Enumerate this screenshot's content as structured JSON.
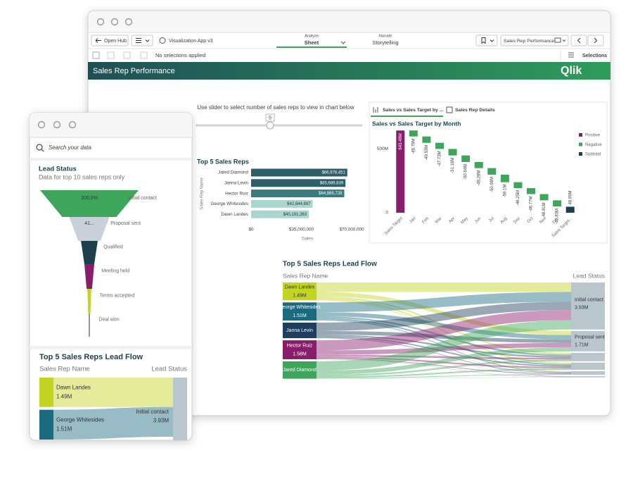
{
  "toolbar": {
    "open_hub": "Open Hub",
    "app_name": "Visualization App v3",
    "tabs": [
      {
        "caption": "Analyze",
        "label": "Sheet"
      },
      {
        "caption": "Narrate",
        "label": "Storytelling"
      }
    ],
    "sheet_selector": "Sales Rep Performance",
    "selections_status": "No selections applied",
    "selections_button": "Selections"
  },
  "sheet": {
    "title": "Sales Rep Performance",
    "logo": "Qlik",
    "slider": {
      "caption": "Use slider to select number of sales reps to view in chart below",
      "value": 5
    },
    "tabs": [
      "Sales vs Sales Target by ...",
      "Sales Rep Details"
    ]
  },
  "mobile": {
    "search_placeholder": "Search your data"
  },
  "chart_data": [
    {
      "type": "bar",
      "orientation": "horizontal",
      "title": "Top 5 Sales Reps",
      "y_label": "Sales Rep Name",
      "x_label": "Sales",
      "categories": [
        "Jared Diamond",
        "Janna Levin",
        "Hector Ruiz",
        "George Whitesides",
        "Dawn Landes"
      ],
      "values": [
        66978451,
        65689839,
        64865728,
        42844887,
        40191263
      ],
      "value_labels": [
        "$66,978,451",
        "$65,689,839",
        "$64,865,728",
        "$42,844,887",
        "$40,191,263"
      ],
      "colors": [
        "#2d5f6b",
        "#2d5f6b",
        "#3b7b80",
        "#a9d6ce",
        "#a9d6ce"
      ],
      "xlim": [
        0,
        70000000
      ],
      "xticks": [
        {
          "value": 0,
          "label": "$0"
        },
        {
          "value": 35000000,
          "label": "$35,000,000"
        },
        {
          "value": 70000000,
          "label": "$70,000,000"
        }
      ]
    },
    {
      "type": "waterfall",
      "title": "Sales vs Sales Target by Month",
      "categories": [
        "Sales Target",
        "Jan",
        "Feb",
        "Mar",
        "Apr",
        "May",
        "Jun",
        "Jul",
        "Aug",
        "Sep",
        "Oct",
        "Nov",
        "Dec",
        "Sales Target..."
      ],
      "values": [
        643.48,
        -46.79,
        -49.53,
        -47.73,
        -51.16,
        -50.94,
        -48.28,
        -50.98,
        -59.1,
        -46.25,
        -46.77,
        -48.81,
        -47.83,
        46.99
      ],
      "value_labels": [
        "643.48M",
        "-46.79M",
        "-49.53M",
        "-47.73M",
        "-51.16M",
        "-50.94M",
        "-48.28M",
        "-50.98M",
        "-59.1M",
        "-46.25M",
        "-46.77M",
        "-48.81M",
        "-47.83M",
        "46.99M"
      ],
      "legend": [
        {
          "name": "Positive",
          "color": "#8a1c6c"
        },
        {
          "name": "Negative",
          "color": "#3da65a"
        },
        {
          "name": "Subtotal",
          "color": "#1d3f4b"
        }
      ],
      "ylim": [
        0,
        700
      ],
      "yticks": [
        0,
        {
          "value": 500,
          "label": "500M"
        }
      ]
    },
    {
      "type": "sankey",
      "title": "Top 5 Sales Reps Lead Flow",
      "source_label": "Sales Rep Name",
      "target_label": "Lead Status",
      "sources": [
        {
          "name": "Dawn Landes",
          "value": 1.49,
          "value_label": "1.49M",
          "color": "#c3d422"
        },
        {
          "name": "George Whitesides",
          "value": 1.51,
          "value_label": "1.51M",
          "color": "#1a6b80"
        },
        {
          "name": "Janna Levin",
          "value": 1.3,
          "color": "#1f3d5c"
        },
        {
          "name": "Hector Ruiz",
          "value": 1.58,
          "value_label": "1.58M",
          "color": "#8a1c6c"
        },
        {
          "name": "Jared Diamond",
          "value": 1.45,
          "color": "#3da65a"
        }
      ],
      "targets": [
        {
          "name": "Initial contact",
          "value": 3.93,
          "value_label": "3.93M"
        },
        {
          "name": "Proposal sent",
          "value": 1.71,
          "value_label": "1.71M"
        },
        {
          "name": null,
          "value": 0.7
        },
        {
          "name": null,
          "value": 0.6
        },
        {
          "name": null,
          "value": 0.3
        },
        {
          "name": null,
          "value": 0.1
        }
      ],
      "target_color": "#b9c6ce"
    },
    {
      "type": "funnel",
      "title": "Lead Status",
      "subtitle": "Data for top 10 sales reps only",
      "categories": [
        "Initial contact",
        "Proposal sent",
        "Qualified",
        "Meeting held",
        "Terms accepted",
        "Deal won"
      ],
      "values": [
        100,
        41,
        17,
        10,
        4,
        1
      ],
      "value_labels": [
        "100.0%",
        "41...",
        null,
        null,
        null,
        null
      ],
      "colors": [
        "#3da65a",
        "#c9d1d8",
        "#1d3f4b",
        "#8a1c6c",
        "#c3d422",
        "#5d6b73"
      ]
    },
    {
      "type": "sankey",
      "title": "Top 5 Sales Reps Lead Flow",
      "source_label": "Sales Rep Name",
      "target_label": "Lead Status",
      "sources": [
        {
          "name": "Dawn Landes",
          "value": 1.49,
          "value_label": "1.49M",
          "color": "#c3d422"
        },
        {
          "name": "George Whitesides",
          "value": 1.51,
          "value_label": "1.51M",
          "color": "#1a6b80"
        }
      ],
      "targets": [
        {
          "name": "Initial contact",
          "value": 3.93,
          "value_label": "3.93M"
        }
      ],
      "target_color": "#b9c6ce"
    }
  ]
}
